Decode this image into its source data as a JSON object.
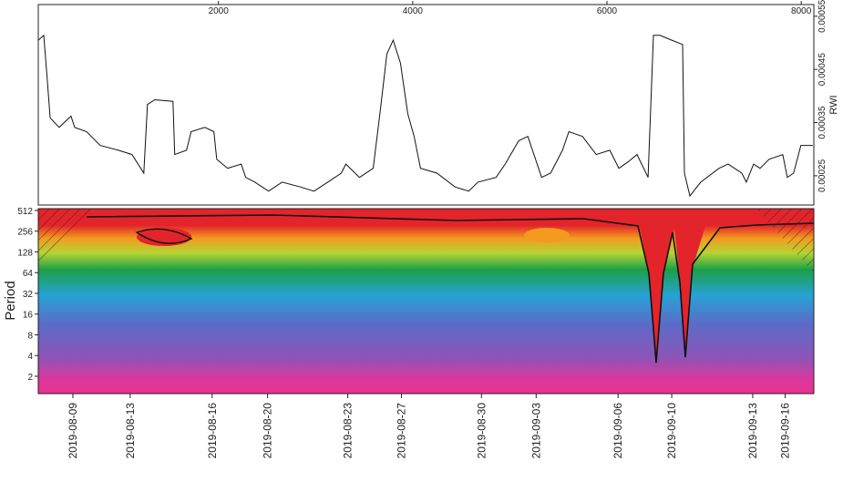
{
  "chart_data": [
    {
      "type": "line",
      "y_label": "RWI",
      "color": "#111111",
      "xlim": [
        145,
        8130
      ],
      "xticks": [
        2000,
        4000,
        6000,
        8000
      ],
      "ylim": [
        0.000195,
        0.000572
      ],
      "yticks": [
        0.00025,
        0.00035,
        0.00045,
        0.00055
      ],
      "x": [
        145,
        201,
        239,
        267,
        360,
        482,
        520,
        642,
        782,
        970,
        1110,
        1232,
        1269,
        1344,
        1532,
        1550,
        1672,
        1719,
        1860,
        1953,
        1982,
        2094,
        2235,
        2281,
        2375,
        2516,
        2656,
        2844,
        2984,
        3125,
        3265,
        3312,
        3453,
        3593,
        3668,
        3734,
        3799,
        3874,
        3949,
        4015,
        4080,
        4249,
        4436,
        4577,
        4671,
        4858,
        4952,
        5092,
        5186,
        5327,
        5420,
        5542,
        5608,
        5748,
        5889,
        6029,
        6123,
        6217,
        6310,
        6423,
        6479,
        6545,
        6667,
        6779,
        6798,
        6854,
        6966,
        7154,
        7247,
        7388,
        7435,
        7510,
        7576,
        7669,
        7810,
        7857,
        7922,
        7997,
        8119
      ],
      "values": [
        0.000505,
        0.000514,
        0.000428,
        0.000359,
        0.000341,
        0.000362,
        0.000341,
        0.000333,
        0.000307,
        0.000298,
        0.00029,
        0.000255,
        0.000384,
        0.000393,
        0.00039,
        0.00029,
        0.000298,
        0.000333,
        0.000341,
        0.000333,
        0.000281,
        0.000264,
        0.000272,
        0.000247,
        0.000238,
        0.000221,
        0.000238,
        0.000229,
        0.000221,
        0.000238,
        0.000255,
        0.000272,
        0.000247,
        0.000264,
        0.000376,
        0.000479,
        0.000505,
        0.000462,
        0.000367,
        0.000324,
        0.000264,
        0.000255,
        0.000229,
        0.000221,
        0.000238,
        0.000247,
        0.000272,
        0.000316,
        0.000324,
        0.000247,
        0.000255,
        0.000298,
        0.000333,
        0.000324,
        0.00029,
        0.000298,
        0.000264,
        0.000276,
        0.00029,
        0.000247,
        0.000514,
        0.000514,
        0.000505,
        0.000497,
        0.000255,
        0.000212,
        0.000238,
        0.000264,
        0.000272,
        0.000255,
        0.000238,
        0.000272,
        0.000264,
        0.000281,
        0.00029,
        0.000247,
        0.000255,
        0.000307,
        0.000307
      ]
    },
    {
      "type": "wavelet",
      "y_label": "Period",
      "log_base": 2,
      "xlim": [
        145,
        8130
      ],
      "xticks": [
        {
          "value": 501,
          "label": "2019-08-09"
        },
        {
          "value": 1091,
          "label": "2019-08-13"
        },
        {
          "value": 1935,
          "label": "2019-08-16"
        },
        {
          "value": 2506,
          "label": "2019-08-20"
        },
        {
          "value": 3331,
          "label": "2019-08-23"
        },
        {
          "value": 3884,
          "label": "2019-08-27"
        },
        {
          "value": 4708,
          "label": "2019-08-30"
        },
        {
          "value": 5271,
          "label": "2019-09-03"
        },
        {
          "value": 6114,
          "label": "2019-09-06"
        },
        {
          "value": 6667,
          "label": "2019-09-10"
        },
        {
          "value": 7501,
          "label": "2019-09-13"
        },
        {
          "value": 7835,
          "label": "2019-09-16"
        }
      ],
      "ylim": [
        1.12,
        544
      ],
      "yticks": [
        2,
        4,
        8,
        16,
        32,
        64,
        128,
        256,
        512
      ]
    }
  ]
}
